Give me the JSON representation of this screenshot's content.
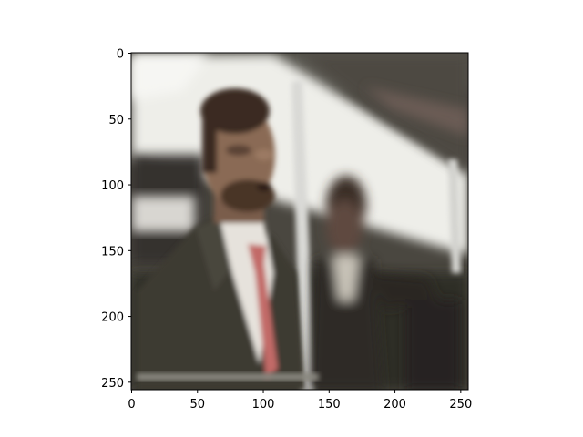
{
  "figure": {
    "type": "image",
    "x_axis": {
      "ticks": [
        0,
        50,
        100,
        150,
        200,
        250
      ],
      "range": [
        0,
        256
      ]
    },
    "y_axis": {
      "ticks": [
        0,
        50,
        100,
        150,
        200,
        250
      ],
      "range": [
        0,
        256
      ],
      "inverted": true
    },
    "image": {
      "subject": "blurry photo of men in suits on a subway train",
      "palette": {
        "background_light": "#e9e6e0",
        "window_band": "#f3f3ef",
        "dark_interior": "#2f2d28",
        "ceiling": "#5c5a52",
        "suit": "#3d3a33",
        "skin": "#8a6a55",
        "hair": "#3a2b22",
        "shirt": "#e6e2dc",
        "tie": "#c26b67",
        "pole": "#d9d9d6"
      }
    }
  }
}
